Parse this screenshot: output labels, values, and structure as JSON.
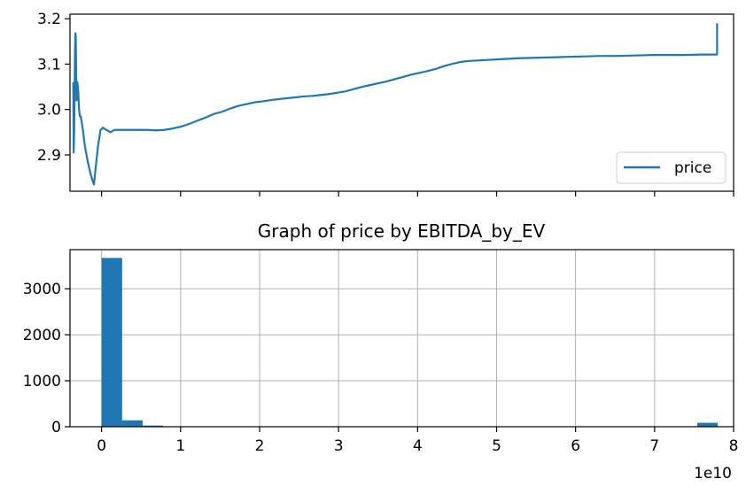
{
  "chart_data": [
    {
      "type": "line",
      "title": "",
      "xlabel": "",
      "ylabel": "",
      "xlim": [
        -400000000,
        80000000000
      ],
      "ylim": [
        2.82,
        3.21
      ],
      "yticks": [
        "2.9",
        "3.0",
        "3.1",
        "3.2"
      ],
      "xticks_visible": false,
      "grid": false,
      "legend_position": "lower-right",
      "series": [
        {
          "name": "price",
          "color": "#1f77b4",
          "points": [
            [
              0,
              3.06
            ],
            [
              50000000,
              2.905
            ],
            [
              100000000,
              2.95
            ],
            [
              150000000,
              3.02
            ],
            [
              200000000,
              3.12
            ],
            [
              250000000,
              3.168
            ],
            [
              300000000,
              3.16
            ],
            [
              350000000,
              3.08
            ],
            [
              400000000,
              3.02
            ],
            [
              450000000,
              3.04
            ],
            [
              500000000,
              3.06
            ],
            [
              600000000,
              3.04
            ],
            [
              700000000,
              3.0
            ],
            [
              800000000,
              2.985
            ],
            [
              900000000,
              2.985
            ],
            [
              1000000000,
              2.975
            ],
            [
              1200000000,
              2.95
            ],
            [
              1400000000,
              2.92
            ],
            [
              1700000000,
              2.89
            ],
            [
              2000000000,
              2.865
            ],
            [
              2300000000,
              2.845
            ],
            [
              2500000000,
              2.835
            ],
            [
              2700000000,
              2.87
            ],
            [
              3000000000,
              2.92
            ],
            [
              3300000000,
              2.955
            ],
            [
              3600000000,
              2.96
            ],
            [
              4000000000,
              2.955
            ],
            [
              4500000000,
              2.95
            ],
            [
              5000000000,
              2.955
            ],
            [
              5600000000,
              2.955
            ],
            [
              7000000000,
              2.955
            ],
            [
              9000000000,
              2.955
            ],
            [
              10000000000,
              2.954
            ],
            [
              11000000000,
              2.955
            ],
            [
              12000000000,
              2.958
            ],
            [
              13000000000,
              2.962
            ],
            [
              14000000000,
              2.968
            ],
            [
              15000000000,
              2.975
            ],
            [
              16000000000,
              2.982
            ],
            [
              17000000000,
              2.99
            ],
            [
              18000000000,
              2.995
            ],
            [
              19000000000,
              3.002
            ],
            [
              20000000000,
              3.008
            ],
            [
              21000000000,
              3.012
            ],
            [
              22000000000,
              3.016
            ],
            [
              23000000000,
              3.018
            ],
            [
              24000000000,
              3.021
            ],
            [
              25000000000,
              3.023
            ],
            [
              26000000000,
              3.025
            ],
            [
              27000000000,
              3.027
            ],
            [
              28000000000,
              3.029
            ],
            [
              29000000000,
              3.03
            ],
            [
              30000000000,
              3.032
            ],
            [
              31000000000,
              3.034
            ],
            [
              32000000000,
              3.037
            ],
            [
              33000000000,
              3.04
            ],
            [
              34000000000,
              3.045
            ],
            [
              35000000000,
              3.05
            ],
            [
              36000000000,
              3.054
            ],
            [
              37000000000,
              3.058
            ],
            [
              38000000000,
              3.062
            ],
            [
              39000000000,
              3.067
            ],
            [
              40000000000,
              3.072
            ],
            [
              41000000000,
              3.077
            ],
            [
              42000000000,
              3.081
            ],
            [
              43000000000,
              3.085
            ],
            [
              44000000000,
              3.09
            ],
            [
              45000000000,
              3.096
            ],
            [
              46000000000,
              3.101
            ],
            [
              47000000000,
              3.105
            ],
            [
              48000000000,
              3.107
            ],
            [
              50000000000,
              3.109
            ],
            [
              52000000000,
              3.111
            ],
            [
              54000000000,
              3.113
            ],
            [
              56000000000,
              3.114
            ],
            [
              58000000000,
              3.115
            ],
            [
              60000000000,
              3.116
            ],
            [
              62000000000,
              3.117
            ],
            [
              64000000000,
              3.118
            ],
            [
              66000000000,
              3.118
            ],
            [
              68000000000,
              3.119
            ],
            [
              70000000000,
              3.12
            ],
            [
              72000000000,
              3.12
            ],
            [
              74000000000,
              3.12
            ],
            [
              76000000000,
              3.121
            ],
            [
              77000000000,
              3.121
            ],
            [
              78000000000,
              3.121
            ],
            [
              78000000000,
              3.19
            ]
          ]
        }
      ]
    },
    {
      "type": "bar",
      "title": "Graph of price by EBITDA_by_EV",
      "xlabel": "",
      "ylabel": "",
      "x_offset_label": "1e10",
      "xlim": [
        -4,
        80
      ],
      "ylim": [
        0,
        3850
      ],
      "xticks": [
        "0",
        "1",
        "2",
        "3",
        "4",
        "5",
        "6",
        "7",
        "8"
      ],
      "yticks": [
        "0",
        "1000",
        "2000",
        "3000"
      ],
      "grid": true,
      "color": "#1f77b4",
      "bins": [
        {
          "x0": 0,
          "x1": 2.6,
          "count": 3670
        },
        {
          "x0": 2.6,
          "x1": 5.2,
          "count": 140
        },
        {
          "x0": 5.2,
          "x1": 7.8,
          "count": 25
        },
        {
          "x0": 7.8,
          "x1": 10.4,
          "count": 8
        },
        {
          "x0": 10.4,
          "x1": 13.0,
          "count": 3
        },
        {
          "x0": 75.4,
          "x1": 78.0,
          "count": 85
        }
      ]
    }
  ]
}
